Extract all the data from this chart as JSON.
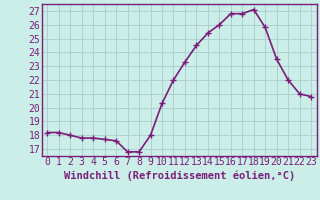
{
  "x": [
    0,
    1,
    2,
    3,
    4,
    5,
    6,
    7,
    8,
    9,
    10,
    11,
    12,
    13,
    14,
    15,
    16,
    17,
    18,
    19,
    20,
    21,
    22,
    23
  ],
  "y": [
    18.2,
    18.2,
    18.0,
    17.8,
    17.8,
    17.7,
    17.6,
    16.8,
    16.8,
    18.0,
    20.3,
    22.0,
    23.3,
    24.5,
    25.4,
    26.0,
    26.8,
    26.8,
    27.1,
    25.8,
    23.5,
    22.0,
    21.0,
    20.8
  ],
  "line_color": "#7b1d7b",
  "marker": "+",
  "marker_size": 4,
  "bg_color": "#cceee8",
  "grid_color": "#aacccc",
  "xlabel": "Windchill (Refroidissement éolien,°C)",
  "xlabel_fontsize": 7.5,
  "ylabel_ticks": [
    17,
    18,
    19,
    20,
    21,
    22,
    23,
    24,
    25,
    26,
    27
  ],
  "ylim": [
    16.5,
    27.5
  ],
  "xlim": [
    -0.5,
    23.5
  ],
  "tick_fontsize": 7,
  "line_width": 1.2,
  "spine_color": "#7b1d7b"
}
